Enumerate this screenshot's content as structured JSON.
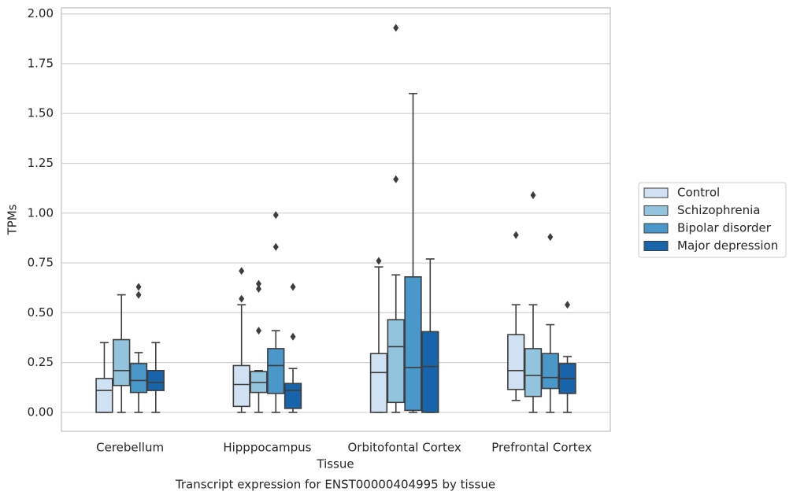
{
  "chart_data": {
    "type": "box",
    "title": "Transcript expression for ENST00000404995 by tissue",
    "xlabel": "Tissue",
    "ylabel": "TPMs",
    "categories": [
      "Cerebellum",
      "Hipppocampus",
      "Orbitofontal Cortex",
      "Prefrontal Cortex"
    ],
    "ylim": [
      -0.095,
      2.03
    ],
    "yticks": [
      {
        "value": 0,
        "label": "0.00"
      },
      {
        "value": 0.25,
        "label": "0.25"
      },
      {
        "value": 0.5,
        "label": "0.50"
      },
      {
        "value": 0.75,
        "label": "0.75"
      },
      {
        "value": 1,
        "label": "1.00"
      },
      {
        "value": 1.25,
        "label": "1.25"
      },
      {
        "value": 1.5,
        "label": "1.50"
      },
      {
        "value": 1.75,
        "label": "1.75"
      },
      {
        "value": 2,
        "label": "2.00"
      }
    ],
    "grid": true,
    "legend": "center right outside",
    "series": [
      {
        "name": "Control",
        "color": "#cfe1f2",
        "values": [
          {
            "low": 0,
            "q1": 0,
            "median": 0.11,
            "q3": 0.17,
            "high": 0.35,
            "outliers": []
          },
          {
            "low": 0,
            "q1": 0.03,
            "median": 0.14,
            "q3": 0.235,
            "high": 0.54,
            "outliers": [
              0.57,
              0.71
            ]
          },
          {
            "low": 0,
            "q1": 0,
            "median": 0.2,
            "q3": 0.295,
            "high": 0.73,
            "outliers": [
              0.76
            ]
          },
          {
            "low": 0.06,
            "q1": 0.115,
            "median": 0.21,
            "q3": 0.39,
            "high": 0.54,
            "outliers": [
              0.89
            ]
          }
        ]
      },
      {
        "name": "Schizophrenia",
        "color": "#93c4de",
        "values": [
          {
            "low": 0,
            "q1": 0.135,
            "median": 0.21,
            "q3": 0.365,
            "high": 0.59,
            "outliers": []
          },
          {
            "low": 0,
            "q1": 0.1,
            "median": 0.15,
            "q3": 0.205,
            "high": 0.21,
            "outliers": [
              0.41,
              0.62,
              0.645
            ]
          },
          {
            "low": 0,
            "q1": 0.05,
            "median": 0.33,
            "q3": 0.465,
            "high": 0.69,
            "outliers": [
              1.17,
              1.93
            ]
          },
          {
            "low": 0,
            "q1": 0.08,
            "median": 0.185,
            "q3": 0.32,
            "high": 0.54,
            "outliers": [
              1.09
            ]
          }
        ]
      },
      {
        "name": "Bipolar disorder",
        "color": "#4a97c9",
        "values": [
          {
            "low": 0,
            "q1": 0.1,
            "median": 0.16,
            "q3": 0.245,
            "high": 0.3,
            "outliers": [
              0.59,
              0.63
            ]
          },
          {
            "low": 0,
            "q1": 0.095,
            "median": 0.235,
            "q3": 0.32,
            "high": 0.41,
            "outliers": [
              0.83,
              0.99
            ]
          },
          {
            "low": 0,
            "q1": 0.01,
            "median": 0.225,
            "q3": 0.68,
            "high": 1.6,
            "outliers": []
          },
          {
            "low": 0,
            "q1": 0.12,
            "median": 0.175,
            "q3": 0.295,
            "high": 0.44,
            "outliers": [
              0.88
            ]
          }
        ]
      },
      {
        "name": "Major depression",
        "color": "#1764ab",
        "values": [
          {
            "low": 0,
            "q1": 0.11,
            "median": 0.15,
            "q3": 0.21,
            "high": 0.35,
            "outliers": []
          },
          {
            "low": 0,
            "q1": 0.02,
            "median": 0.11,
            "q3": 0.145,
            "high": 0.22,
            "outliers": [
              0.38,
              0.63
            ]
          },
          {
            "low": 0,
            "q1": 0,
            "median": 0.23,
            "q3": 0.405,
            "high": 0.77,
            "outliers": []
          },
          {
            "low": 0,
            "q1": 0.095,
            "median": 0.17,
            "q3": 0.245,
            "high": 0.28,
            "outliers": [
              0.54
            ]
          }
        ]
      }
    ]
  }
}
